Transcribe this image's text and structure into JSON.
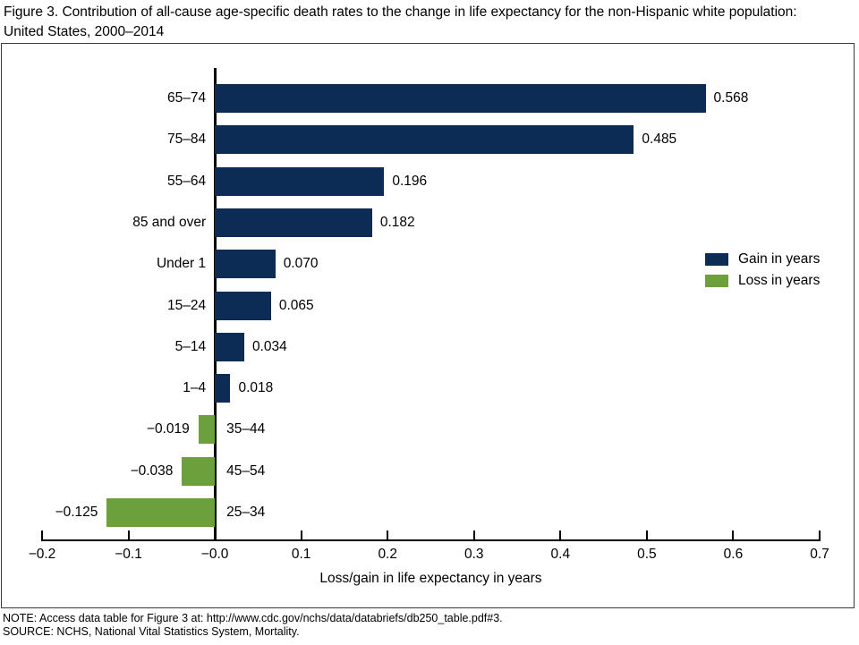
{
  "figure": {
    "title": "Figure 3. Contribution of all-cause age-specific death rates to the change in life expectancy for the non-Hispanic white population: United States, 2000–2014",
    "note": "NOTE: Access data table for Figure 3 at: http://www.cdc.gov/nchs/data/databriefs/db250_table.pdf#3.",
    "source": "SOURCE: NCHS, National Vital Statistics System, Mortality."
  },
  "chart_data": {
    "type": "bar",
    "orientation": "horizontal",
    "title": "",
    "xlabel": "Loss/gain in life expectancy in years",
    "ylabel": "",
    "xlim": [
      -0.2,
      0.7
    ],
    "grid": false,
    "legend_position": "right-middle",
    "x_ticks": [
      -0.2,
      -0.1,
      0,
      0.1,
      0.2,
      0.3,
      0.4,
      0.5,
      0.6,
      0.7
    ],
    "x_tick_labels": [
      "−0.2",
      "−0.1",
      "−0.0",
      "0.1",
      "0.2",
      "0.3",
      "0.4",
      "0.5",
      "0.6",
      "0.7"
    ],
    "categories": [
      "65–74",
      "75–84",
      "55–64",
      "85 and over",
      "Under 1",
      "15–24",
      "5–14",
      "1–4",
      "35–44",
      "45–54",
      "25–34"
    ],
    "values": [
      0.568,
      0.485,
      0.196,
      0.182,
      0.07,
      0.065,
      0.034,
      0.018,
      -0.019,
      -0.038,
      -0.125
    ],
    "value_labels": [
      "0.568",
      "0.485",
      "0.196",
      "0.182",
      "0.070",
      "0.065",
      "0.034",
      "0.018",
      "−0.019",
      "−0.038",
      "−0.125"
    ],
    "legend": [
      {
        "label": "Gain in years",
        "color": "#0c2c56"
      },
      {
        "label": "Loss in years",
        "color": "#6ba03c"
      }
    ],
    "colors": {
      "gain": "#0c2c56",
      "loss": "#6ba03c",
      "axis": "#000000"
    }
  }
}
